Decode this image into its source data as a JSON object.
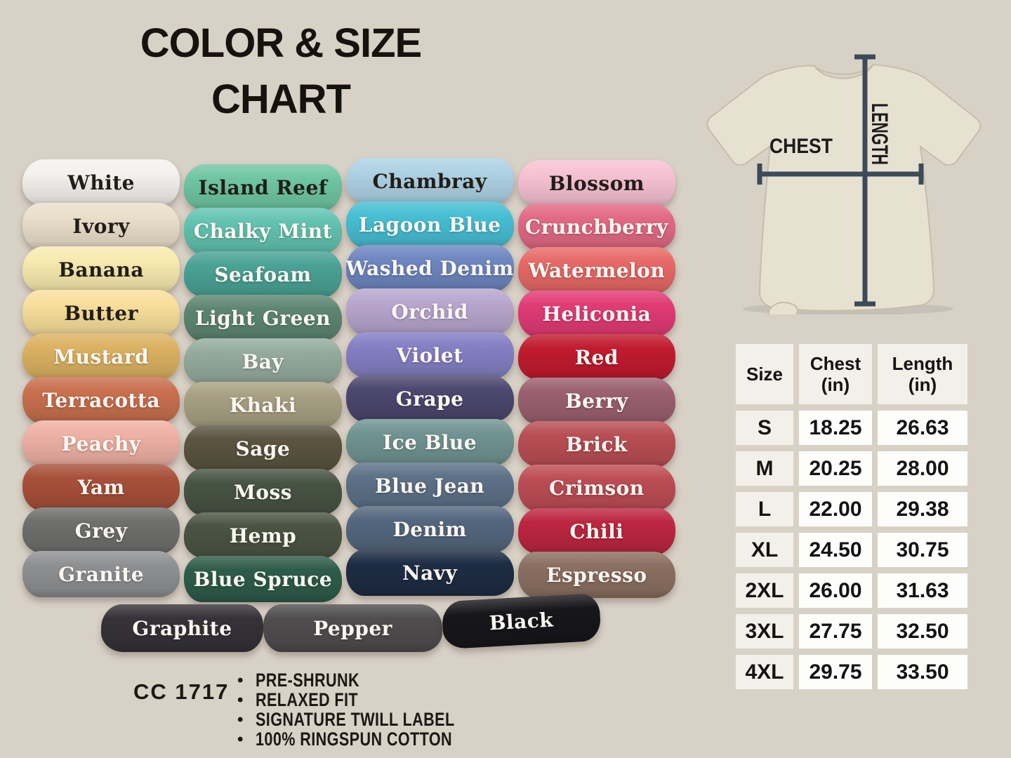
{
  "title": {
    "line1": "COLOR & SIZE",
    "line2": "CHART"
  },
  "colors": {
    "columns": [
      {
        "items": [
          {
            "name": "White",
            "hex": "#f4f2ee",
            "dark_text": true
          },
          {
            "name": "Ivory",
            "hex": "#eadfcb",
            "dark_text": true
          },
          {
            "name": "Banana",
            "hex": "#f8eaaf",
            "dark_text": true
          },
          {
            "name": "Butter",
            "hex": "#f9df9b",
            "dark_text": true
          },
          {
            "name": "Mustard",
            "hex": "#dcb261",
            "dark_text": false
          },
          {
            "name": "Terracotta",
            "hex": "#c9704f",
            "dark_text": false
          },
          {
            "name": "Peachy",
            "hex": "#eeb1a5",
            "dark_text": false
          },
          {
            "name": "Yam",
            "hex": "#a8503a",
            "dark_text": false
          },
          {
            "name": "Grey",
            "hex": "#6f706e",
            "dark_text": false
          },
          {
            "name": "Granite",
            "hex": "#8f9092",
            "dark_text": false
          }
        ]
      },
      {
        "items": [
          {
            "name": "Island Reef",
            "hex": "#6fc6a3",
            "dark_text": true
          },
          {
            "name": "Chalky Mint",
            "hex": "#63c3b0",
            "dark_text": false
          },
          {
            "name": "Seafoam",
            "hex": "#4aa295",
            "dark_text": false
          },
          {
            "name": "Light Green",
            "hex": "#5d8672",
            "dark_text": false
          },
          {
            "name": "Bay",
            "hex": "#95ab9e",
            "dark_text": false
          },
          {
            "name": "Khaki",
            "hex": "#a7a083",
            "dark_text": false
          },
          {
            "name": "Sage",
            "hex": "#5a5440",
            "dark_text": false
          },
          {
            "name": "Moss",
            "hex": "#475343",
            "dark_text": false
          },
          {
            "name": "Hemp",
            "hex": "#4b5442",
            "dark_text": false
          },
          {
            "name": "Blue Spruce",
            "hex": "#2e5c4b",
            "dark_text": false
          }
        ]
      },
      {
        "items": [
          {
            "name": "Chambray",
            "hex": "#aed2e4",
            "dark_text": true
          },
          {
            "name": "Lagoon Blue",
            "hex": "#47bfd3",
            "dark_text": false
          },
          {
            "name": "Washed Denim",
            "hex": "#6e87c1",
            "dark_text": false
          },
          {
            "name": "Orchid",
            "hex": "#b8a6cf",
            "dark_text": false
          },
          {
            "name": "Violet",
            "hex": "#8480c4",
            "dark_text": false
          },
          {
            "name": "Grape",
            "hex": "#4c476e",
            "dark_text": false
          },
          {
            "name": "Ice Blue",
            "hex": "#709492",
            "dark_text": false
          },
          {
            "name": "Blue Jean",
            "hex": "#5d7288",
            "dark_text": false
          },
          {
            "name": "Denim",
            "hex": "#54677e",
            "dark_text": false
          },
          {
            "name": "Navy",
            "hex": "#1e2d44",
            "dark_text": false
          }
        ]
      },
      {
        "items": [
          {
            "name": "Blossom",
            "hex": "#f7c2d3",
            "dark_text": true
          },
          {
            "name": "Crunchberry",
            "hex": "#e26a84",
            "dark_text": false
          },
          {
            "name": "Watermelon",
            "hex": "#e76a67",
            "dark_text": false
          },
          {
            "name": "Heliconia",
            "hex": "#e23b75",
            "dark_text": false
          },
          {
            "name": "Red",
            "hex": "#c11b2f",
            "dark_text": false
          },
          {
            "name": "Berry",
            "hex": "#9b6070",
            "dark_text": false
          },
          {
            "name": "Brick",
            "hex": "#b94e54",
            "dark_text": false
          },
          {
            "name": "Crimson",
            "hex": "#bd4d55",
            "dark_text": false
          },
          {
            "name": "Chili",
            "hex": "#bd2641",
            "dark_text": false
          },
          {
            "name": "Espresso",
            "hex": "#8b7061",
            "dark_text": false
          }
        ]
      }
    ],
    "bottom_row": [
      {
        "name": "Graphite",
        "hex": "#353338",
        "dark_text": false
      },
      {
        "name": "Pepper",
        "hex": "#4f4d4e",
        "dark_text": false
      },
      {
        "name": "Black",
        "hex": "#17161a",
        "dark_text": false
      }
    ]
  },
  "diagram": {
    "chest_label": "CHEST",
    "length_label": "LENGTH",
    "line_color": "#3c4a59",
    "shirt_color": "#e7e1d2"
  },
  "size_table": {
    "headers": [
      {
        "line1": "Size",
        "line2": ""
      },
      {
        "line1": "Chest",
        "line2": "(in)"
      },
      {
        "line1": "Length",
        "line2": "(in)"
      }
    ],
    "rows": [
      {
        "size": "S",
        "chest": "18.25",
        "length": "26.63"
      },
      {
        "size": "M",
        "chest": "20.25",
        "length": "28.00"
      },
      {
        "size": "L",
        "chest": "22.00",
        "length": "29.38"
      },
      {
        "size": "XL",
        "chest": "24.50",
        "length": "30.75"
      },
      {
        "size": "2XL",
        "chest": "26.00",
        "length": "31.63"
      },
      {
        "size": "3XL",
        "chest": "27.75",
        "length": "32.50"
      },
      {
        "size": "4XL",
        "chest": "29.75",
        "length": "33.50"
      }
    ]
  },
  "footer": {
    "model": "CC 1717",
    "bullets": [
      "PRE-SHRUNK",
      "RELAXED FIT",
      "SIGNATURE TWILL LABEL",
      "100% RINGSPUN COTTON"
    ]
  }
}
